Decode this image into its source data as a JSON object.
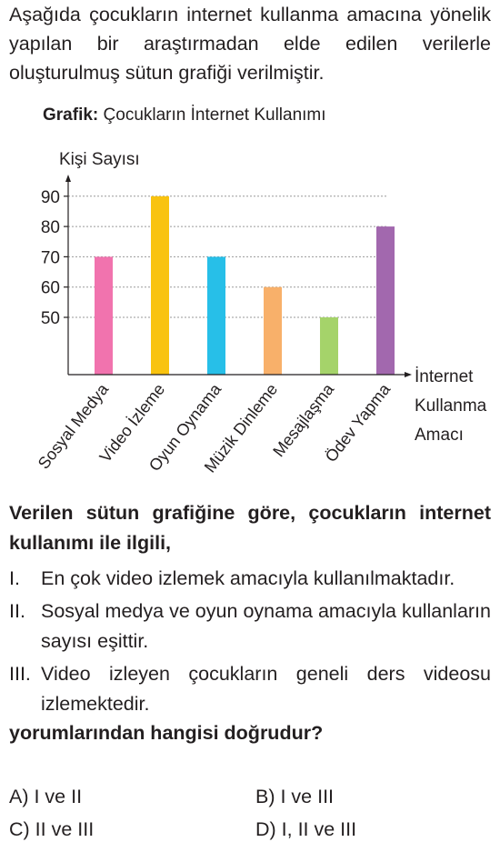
{
  "intro": "Aşağıda çocukların internet kullanma amacına yönelik yapılan bir araştırmadan elde edilen verilerle oluşturulmuş sütun grafiği verilmiştir.",
  "chart_label": "Grafik:",
  "chart_data": {
    "type": "bar",
    "title": "Çocukların İnternet Kullanımı",
    "ylabel": "Kişi Sayısı",
    "xlabel_lines": [
      "İnternet",
      "Kullanma",
      "Amacı"
    ],
    "categories": [
      "Sosyal Medya",
      "Video İzleme",
      "Oyun Oynama",
      "Müzik Dinleme",
      "Mesajlaşma",
      "Ödev Yapma"
    ],
    "values": [
      70,
      90,
      70,
      60,
      50,
      80
    ],
    "colors": [
      "#f173ae",
      "#f9c30f",
      "#27bfe8",
      "#f8b06a",
      "#a5d36a",
      "#a268ae"
    ],
    "yticks": [
      50,
      60,
      70,
      80,
      90
    ],
    "grid": "dotted"
  },
  "question": "Verilen sütun grafiğine göre, çocukların internet kullanımı ile ilgili,",
  "statements": [
    {
      "num": "I.",
      "text": "En çok video izlemek amacıyla kullanılmaktadır."
    },
    {
      "num": "II.",
      "text": "Sosyal medya ve oyun oynama amacıyla kullanların sayısı eşittir."
    },
    {
      "num": "III.",
      "text": "Video izleyen çocukların geneli ders videosu izlemektedir."
    }
  ],
  "ask": "yorumlarından hangisi doğrudur?",
  "options": {
    "a": "A) I ve II",
    "b": "B) I ve III",
    "c": "C) II ve III",
    "d": "D) I, II ve III"
  }
}
